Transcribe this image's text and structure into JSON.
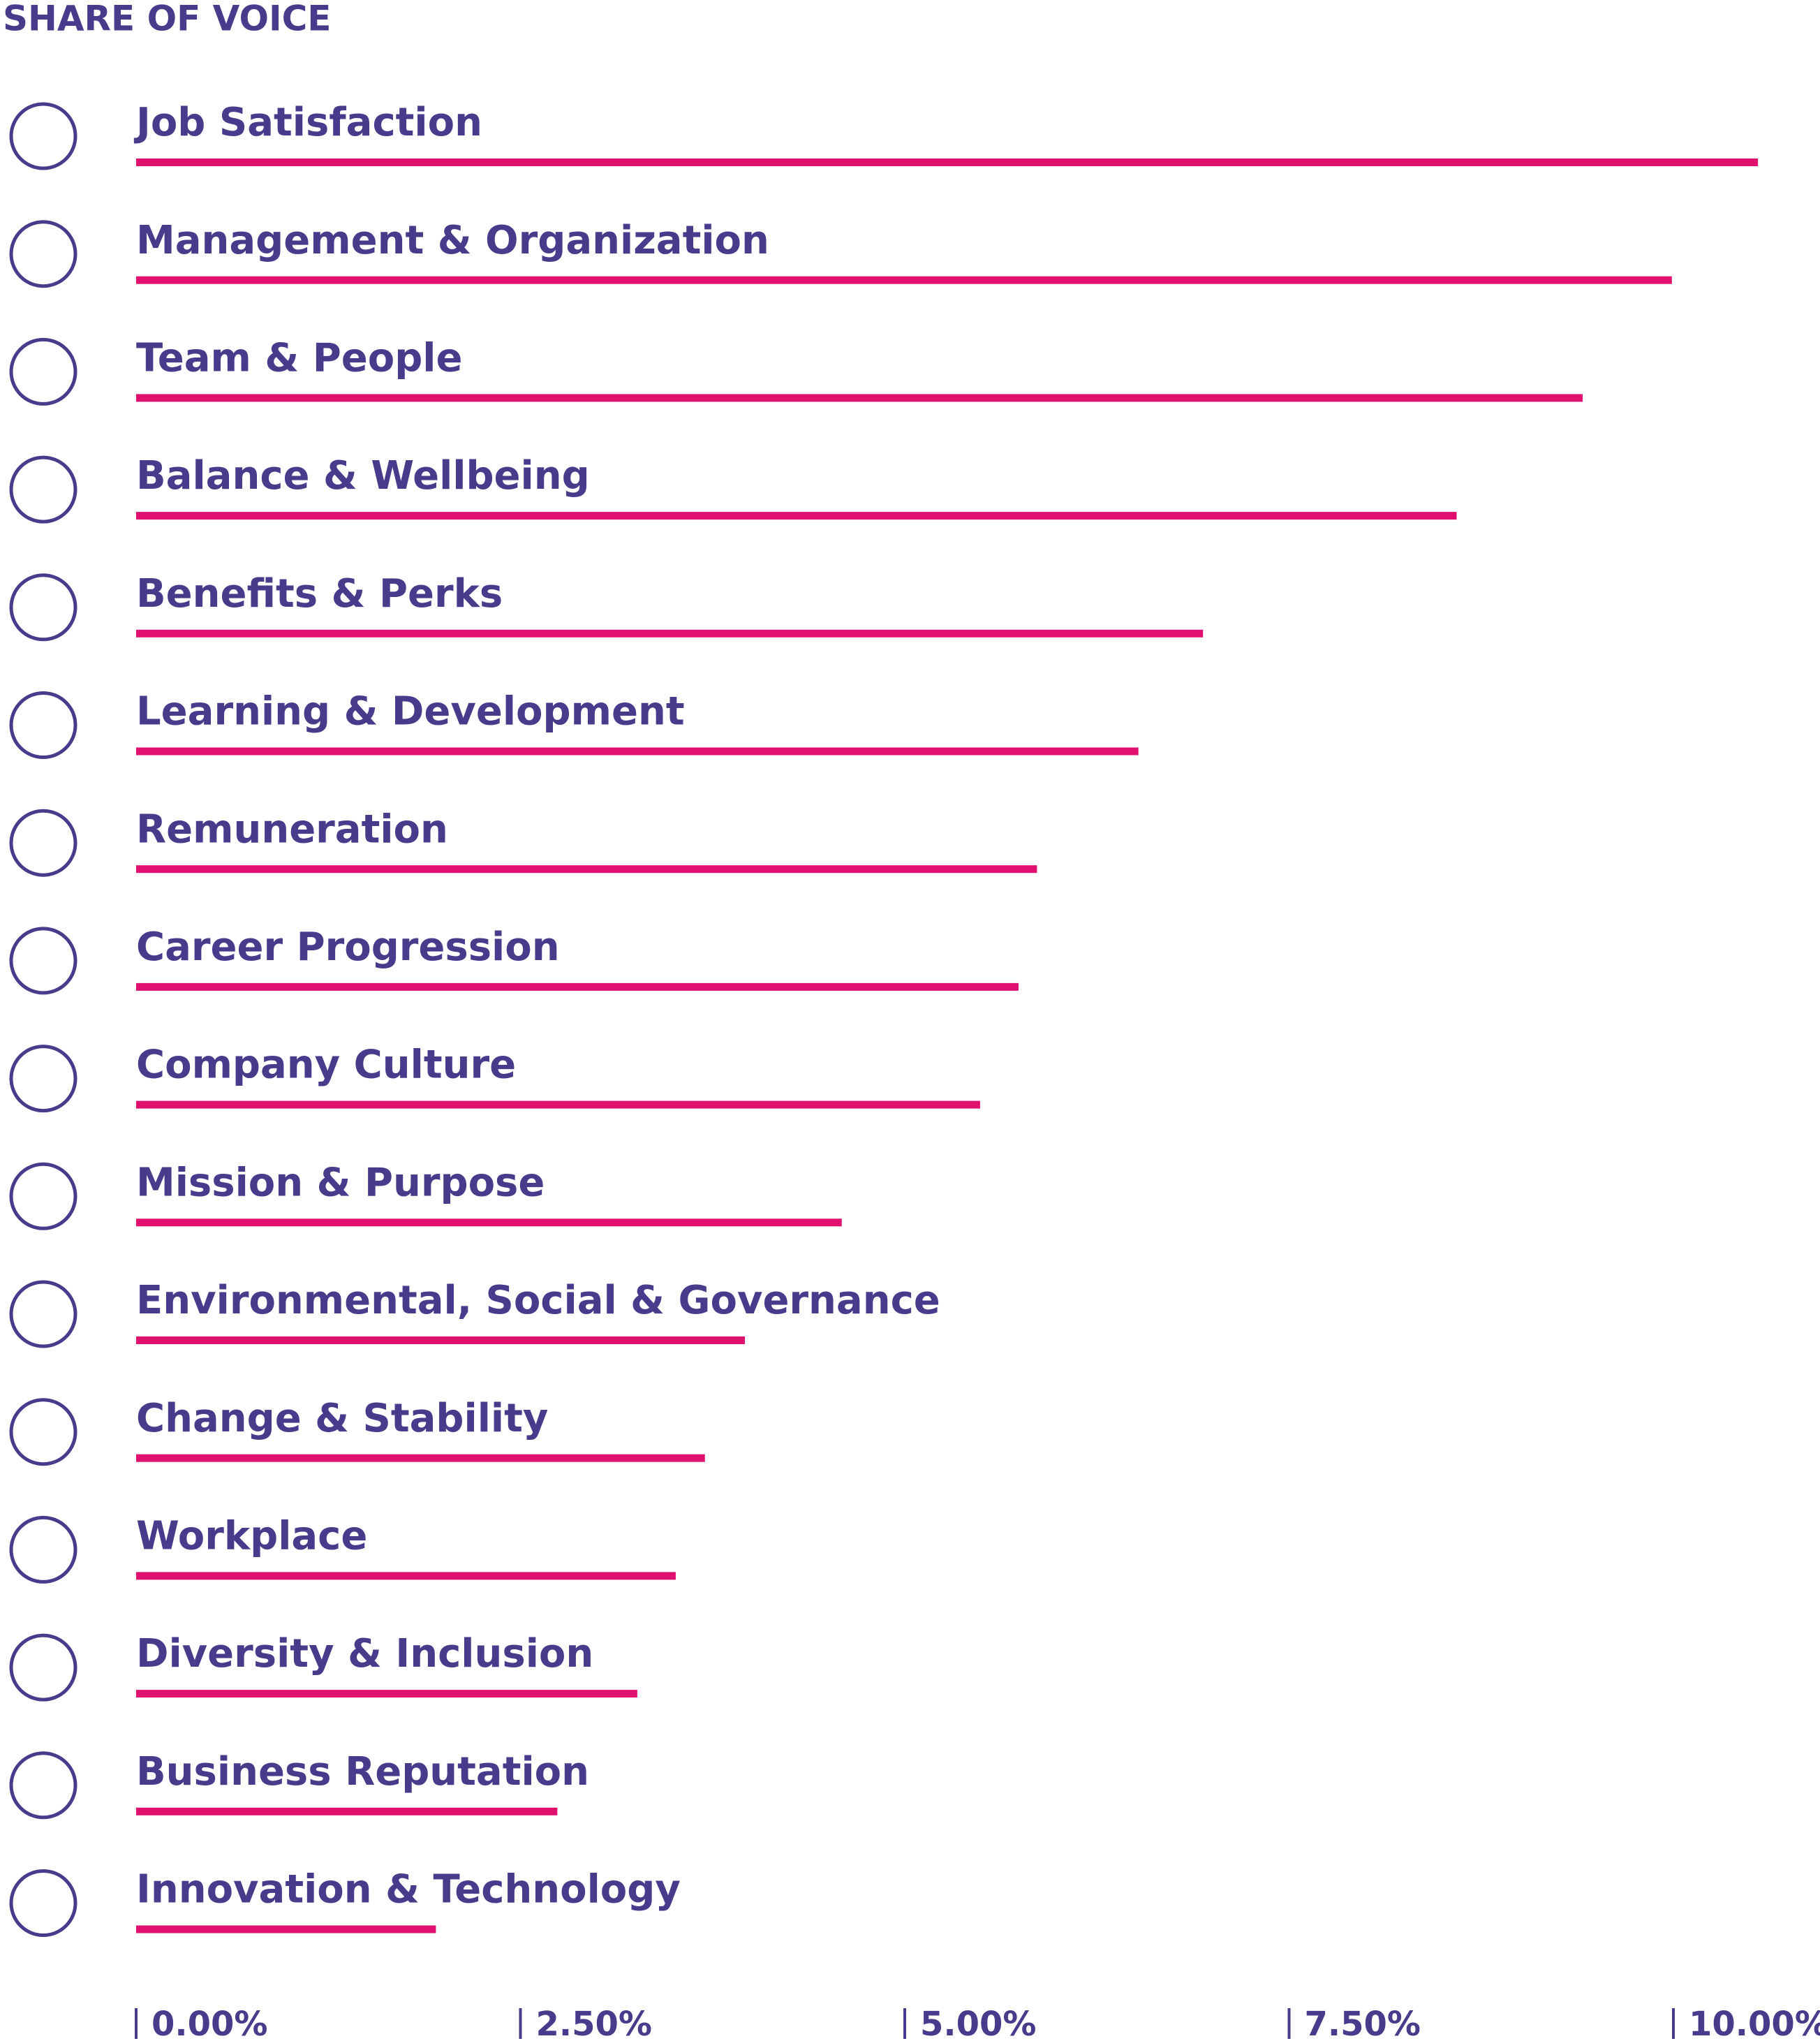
{
  "chart_data": {
    "type": "bar",
    "orientation": "horizontal",
    "title": "SHARE OF VOICE",
    "categories": [
      "Job Satisfaction",
      "Management & Organization",
      "Team & People",
      "Balance & Wellbeing",
      "Benefits & Perks",
      "Learning & Development",
      "Remuneration",
      "Career Progression",
      "Company Culture",
      "Mission & Purpose",
      "Environmental, Social & Governance",
      "Change & Stability",
      "Workplace",
      "Diversity & Inclusion",
      "Business Reputation",
      "Innovation & Technology"
    ],
    "values": [
      10.55,
      9.99,
      9.41,
      8.59,
      6.94,
      6.52,
      5.86,
      5.74,
      5.49,
      4.59,
      3.96,
      3.7,
      3.51,
      3.26,
      2.74,
      1.95
    ],
    "color": "#e0106e",
    "xlim": [
      0,
      10.6
    ],
    "xticks": [
      {
        "value": 0,
        "label": "0.00%"
      },
      {
        "value": 2.5,
        "label": "2.50%"
      },
      {
        "value": 5,
        "label": "5.00%"
      },
      {
        "value": 7.5,
        "label": "7.50%"
      },
      {
        "value": 10,
        "label": "10.00%"
      }
    ],
    "grid": false
  }
}
